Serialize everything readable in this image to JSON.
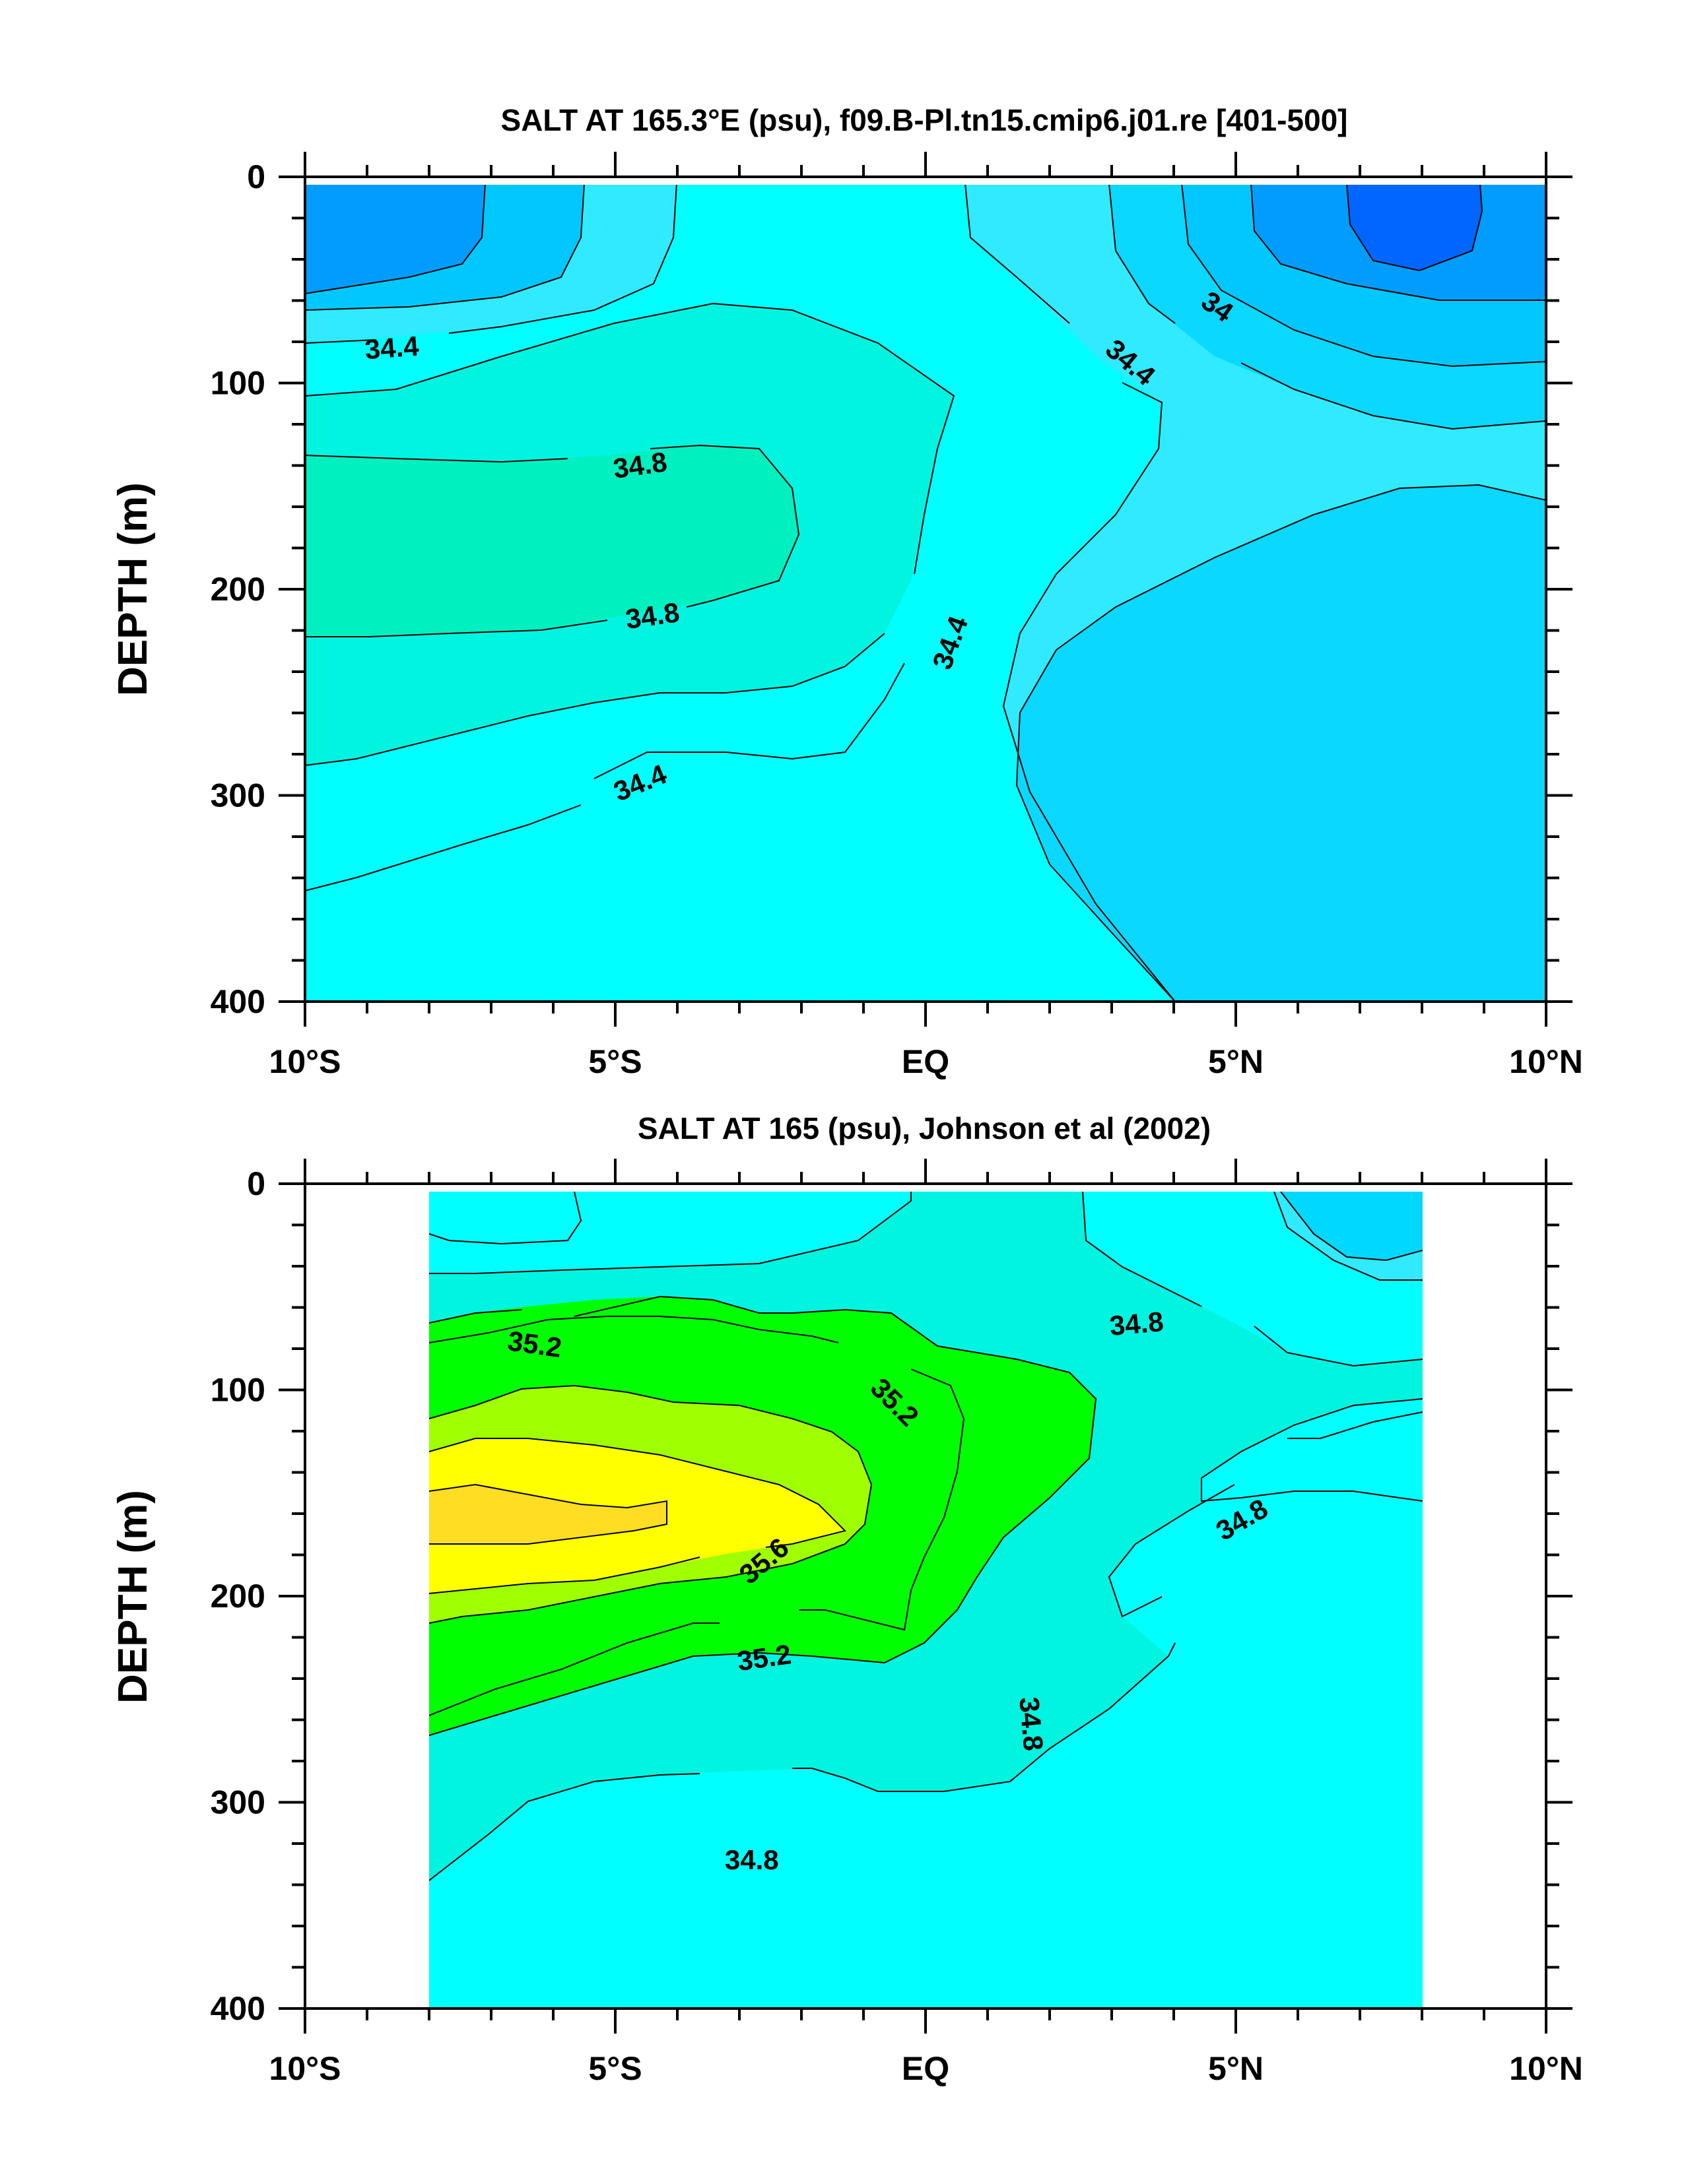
{
  "chart_data": [
    {
      "type": "contour",
      "title": "SALT AT 165.3°E (psu), f09.B-Pl.tn15.cmip6.j01.re [401-500]",
      "ylabel": "DEPTH (m)",
      "xlabel": "",
      "x_range": [
        -10,
        10
      ],
      "y_range": [
        0,
        400
      ],
      "y_inverted": true,
      "x_ticks": [
        {
          "value": -10,
          "label": "10°S"
        },
        {
          "value": -5,
          "label": "5°S"
        },
        {
          "value": 0,
          "label": "EQ"
        },
        {
          "value": 5,
          "label": "5°N"
        },
        {
          "value": 10,
          "label": "10°N"
        }
      ],
      "y_ticks": [
        {
          "value": 0,
          "label": "0"
        },
        {
          "value": 100,
          "label": "100"
        },
        {
          "value": 200,
          "label": "200"
        },
        {
          "value": 300,
          "label": "300"
        },
        {
          "value": 400,
          "label": "400"
        }
      ],
      "contour_labels": [
        {
          "text": "34.4",
          "x": -8.6,
          "y": 83,
          "angle": -4
        },
        {
          "text": "34.8",
          "x": -4.6,
          "y": 140,
          "angle": -8
        },
        {
          "text": "34.8",
          "x": -4.4,
          "y": 213,
          "angle": -8
        },
        {
          "text": "34.4",
          "x": -4.6,
          "y": 294,
          "angle": -22
        },
        {
          "text": "34.4",
          "x": 0.4,
          "y": 226,
          "angle": -70
        },
        {
          "text": "34.4",
          "x": 3.3,
          "y": 90,
          "angle": 40
        },
        {
          "text": "34",
          "x": 4.7,
          "y": 63,
          "angle": 35
        }
      ],
      "colors": [
        "#0066ff",
        "#009dff",
        "#00c8ff",
        "#0ad8ff",
        "#30eaff",
        "#00ffff",
        "#00f4e0",
        "#00f0c0"
      ]
    },
    {
      "type": "contour",
      "title": "SALT AT 165 (psu), Johnson et al (2002)",
      "ylabel": "DEPTH (m)",
      "xlabel": "",
      "x_range": [
        -10,
        10
      ],
      "y_range": [
        0,
        400
      ],
      "y_inverted": true,
      "data_x_extent": [
        -8,
        8
      ],
      "x_ticks": [
        {
          "value": -10,
          "label": "10°S"
        },
        {
          "value": -5,
          "label": "5°S"
        },
        {
          "value": 0,
          "label": "EQ"
        },
        {
          "value": 5,
          "label": "5°N"
        },
        {
          "value": 10,
          "label": "10°N"
        }
      ],
      "y_ticks": [
        {
          "value": 0,
          "label": "0"
        },
        {
          "value": 100,
          "label": "100"
        },
        {
          "value": 200,
          "label": "200"
        },
        {
          "value": 300,
          "label": "300"
        },
        {
          "value": 400,
          "label": "400"
        }
      ],
      "contour_labels": [
        {
          "text": "35.2",
          "x": -6.3,
          "y": 78,
          "angle": 8
        },
        {
          "text": "35.2",
          "x": -0.5,
          "y": 106,
          "angle": 45
        },
        {
          "text": "35.6",
          "x": -2.6,
          "y": 183,
          "angle": -40
        },
        {
          "text": "35.2",
          "x": -2.6,
          "y": 230,
          "angle": -8
        },
        {
          "text": "34.8",
          "x": 3.4,
          "y": 68,
          "angle": -5
        },
        {
          "text": "34.8",
          "x": 5.1,
          "y": 163,
          "angle": -30
        },
        {
          "text": "34.8",
          "x": 1.7,
          "y": 262,
          "angle": 85
        },
        {
          "text": "34.8",
          "x": -2.8,
          "y": 328,
          "angle": 0
        }
      ],
      "colors": [
        "#00d8ff",
        "#30eaff",
        "#00ffff",
        "#00f4e0",
        "#00f0c0",
        "#00ff00",
        "#a0ff00",
        "#ffff00",
        "#ffdd22"
      ]
    }
  ]
}
